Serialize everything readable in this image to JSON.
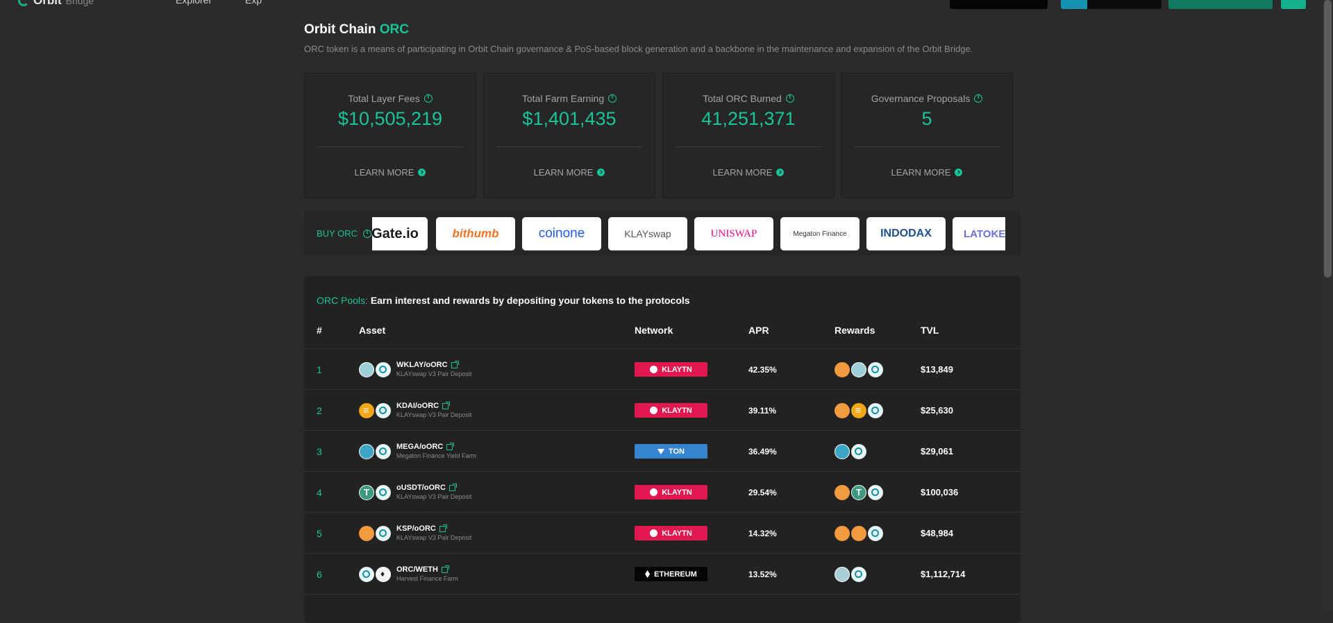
{
  "header": {
    "logo_text": "Orbit",
    "logo_sub": "Bridge",
    "nav": [
      "Explorer",
      "Exp"
    ]
  },
  "page": {
    "title": "Orbit Chain",
    "title_accent": "ORC",
    "subtitle": "ORC token is a means of participating in Orbit Chain governance & PoS-based block generation and a backbone in the maintenance and expansion of the Orbit Bridge."
  },
  "stats": [
    {
      "label": "Total Layer Fees",
      "value": "$10,505,219",
      "link": "LEARN MORE"
    },
    {
      "label": "Total Farm Earning",
      "value": "$1,401,435",
      "link": "LEARN MORE"
    },
    {
      "label": "Total ORC Burned",
      "value": "41,251,371",
      "link": "LEARN MORE"
    },
    {
      "label": "Governance Proposals",
      "value": "5",
      "link": "LEARN MORE"
    }
  ],
  "buy": {
    "label": "BUY ORC",
    "exchanges": [
      {
        "name": "Gate.io",
        "color": "#1a1a1a"
      },
      {
        "name": "bithumb",
        "color": "#f37321"
      },
      {
        "name": "coinone",
        "color": "#1d5cf5"
      },
      {
        "name": "KLAYswap",
        "color": "#555555"
      },
      {
        "name": "UNISWAP",
        "color": "#ff007a"
      },
      {
        "name": "Megaton Finance",
        "color": "#333333"
      },
      {
        "name": "INDODAX",
        "color": "#1d4f91"
      },
      {
        "name": "LATOKEN",
        "color": "#6b6fd6"
      }
    ]
  },
  "pools": {
    "heading_accent": "ORC Pools:",
    "heading": "Earn interest and rewards by depositing your tokens to the protocols",
    "columns": [
      "#",
      "Asset",
      "Network",
      "APR",
      "Rewards",
      "TVL"
    ],
    "rows": [
      {
        "num": "1",
        "asset": "WKLAY/oORC",
        "desc": "KLAYswap V3 Pair Deposit",
        "network": "KLAYTN",
        "apr": "42.35%",
        "tvl": "$13,849"
      },
      {
        "num": "2",
        "asset": "KDAI/oORC",
        "desc": "KLAYswap V3 Pair Deposit",
        "network": "KLAYTN",
        "apr": "39.11%",
        "tvl": "$25,630"
      },
      {
        "num": "3",
        "asset": "MEGA/oORC",
        "desc": "Megaton Finance Yield Farm",
        "network": "TON",
        "apr": "36.49%",
        "tvl": "$29,061"
      },
      {
        "num": "4",
        "asset": "oUSDT/oORC",
        "desc": "KLAYswap V3 Pair Deposit",
        "network": "KLAYTN",
        "apr": "29.54%",
        "tvl": "$100,036"
      },
      {
        "num": "5",
        "asset": "KSP/oORC",
        "desc": "KLAYswap V3 Pair Deposit",
        "network": "KLAYTN",
        "apr": "14.32%",
        "tvl": "$48,984"
      },
      {
        "num": "6",
        "asset": "ORC/WETH",
        "desc": "Harvest Finance Farm",
        "network": "ETHEREUM",
        "apr": "13.52%",
        "tvl": "$1,112,714"
      }
    ]
  }
}
